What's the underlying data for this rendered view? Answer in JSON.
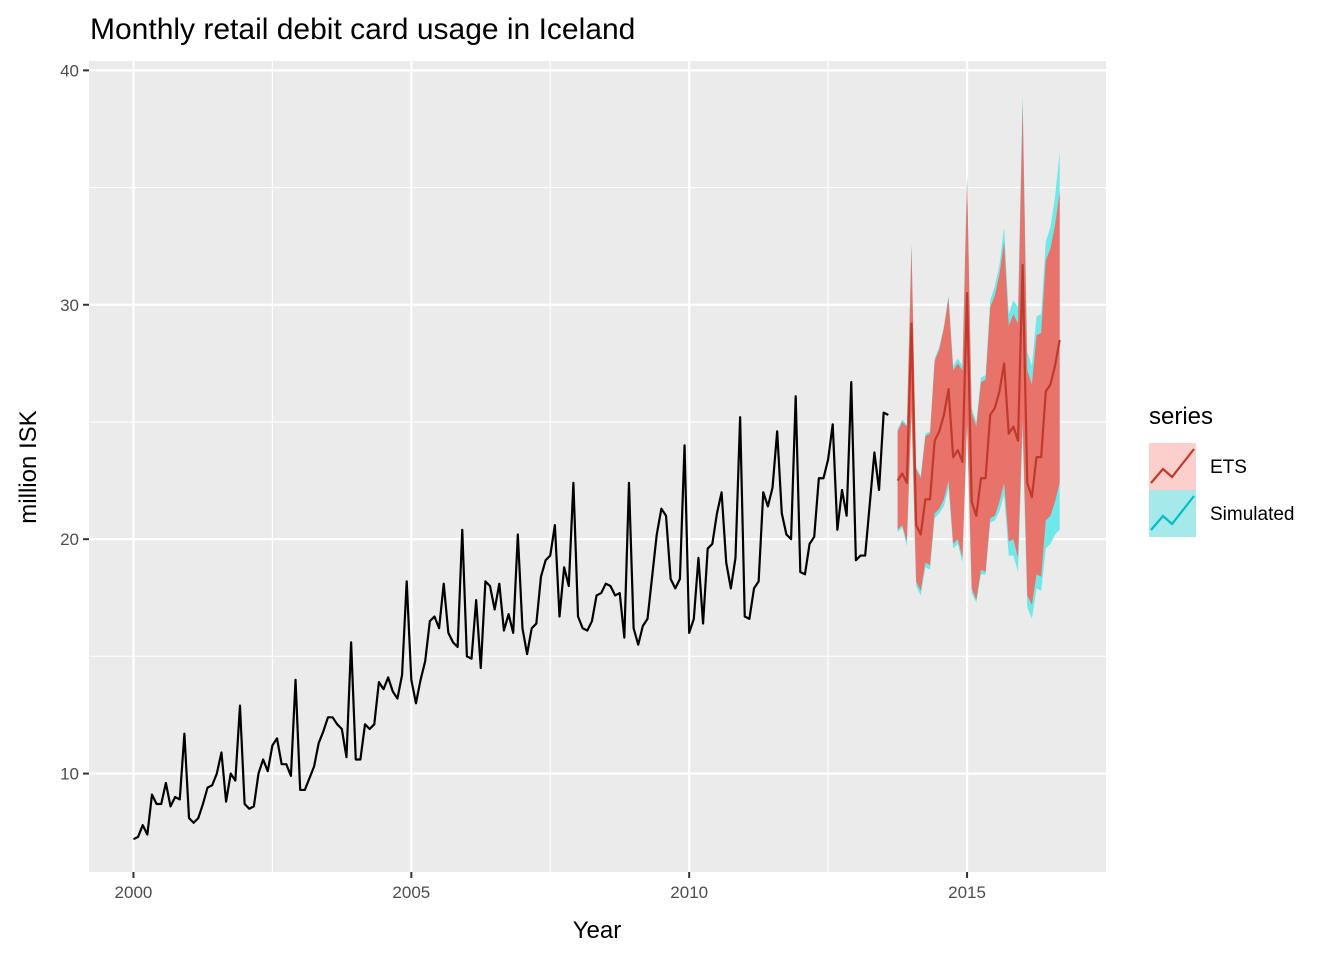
{
  "chart_data": {
    "type": "line",
    "title": "Monthly retail debit card usage in Iceland",
    "xlabel": "Year",
    "ylabel": "million ISK",
    "xlim": [
      1999.2,
      2017.5
    ],
    "ylim": [
      5.8,
      40.4
    ],
    "x_ticks": [
      2000,
      2005,
      2010,
      2015
    ],
    "x_tick_labels": [
      "2000",
      "2005",
      "2010",
      "2015"
    ],
    "y_ticks": [
      10,
      20,
      30,
      40
    ],
    "y_tick_labels": [
      "10",
      "20",
      "30",
      "40"
    ],
    "grid": true,
    "legend": {
      "title": "series",
      "position": "right",
      "entries": [
        {
          "label": "ETS",
          "line_color": "#c0392b",
          "fill_color": "#f8766d"
        },
        {
          "label": "Simulated",
          "line_color": "#00bfc4",
          "fill_color": "#00bfc4"
        }
      ]
    },
    "colors": {
      "panel": "#ebebeb",
      "grid": "#ffffff",
      "history_line": "#000000",
      "ets_line": "#c0392b",
      "ets_band": "#e8736b",
      "sim_band": "#6ee8e8"
    },
    "history": {
      "start": 2000.0,
      "step": 0.08333,
      "values": [
        7.2,
        7.3,
        7.8,
        7.4,
        9.1,
        8.7,
        8.7,
        9.6,
        8.6,
        9.0,
        8.9,
        11.7,
        8.1,
        7.9,
        8.1,
        8.7,
        9.4,
        9.5,
        10.0,
        10.9,
        8.8,
        10.0,
        9.7,
        12.9,
        8.7,
        8.5,
        8.6,
        10.0,
        10.6,
        10.1,
        11.2,
        11.5,
        10.4,
        10.4,
        9.9,
        14.0,
        9.3,
        9.3,
        9.8,
        10.3,
        11.3,
        11.8,
        12.4,
        12.4,
        12.1,
        11.9,
        10.7,
        15.6,
        10.6,
        10.6,
        12.1,
        11.9,
        12.1,
        13.9,
        13.6,
        14.1,
        13.5,
        13.2,
        14.2,
        18.2,
        14.0,
        13.0,
        14.0,
        14.8,
        16.5,
        16.7,
        16.2,
        18.1,
        16.0,
        15.6,
        15.4,
        20.4,
        15.0,
        14.9,
        17.4,
        14.5,
        18.2,
        18.0,
        17.0,
        18.1,
        16.1,
        16.8,
        16.0,
        20.2,
        16.2,
        15.1,
        16.2,
        16.4,
        18.4,
        19.1,
        19.3,
        20.6,
        16.7,
        18.8,
        18.0,
        22.4,
        16.7,
        16.2,
        16.1,
        16.5,
        17.6,
        17.7,
        18.1,
        18.0,
        17.6,
        17.7,
        15.8,
        22.4,
        16.2,
        15.5,
        16.3,
        16.6,
        18.4,
        20.2,
        21.3,
        21.0,
        18.3,
        17.9,
        18.3,
        24.0,
        16.0,
        16.6,
        19.2,
        16.4,
        19.6,
        19.8,
        21.1,
        22.0,
        19.0,
        17.9,
        19.2,
        25.2,
        16.7,
        16.6,
        17.9,
        18.2,
        22.0,
        21.4,
        22.2,
        24.6,
        21.1,
        20.2,
        20.0,
        26.1,
        18.6,
        18.5,
        19.8,
        20.1,
        22.6,
        22.6,
        23.4,
        24.9,
        20.4,
        22.1,
        21.0,
        26.7,
        19.1,
        19.3,
        19.3,
        21.5,
        23.7,
        22.1,
        25.4,
        25.3
      ]
    },
    "forecast": {
      "start": 2013.75,
      "step": 0.08333,
      "ets_mean": [
        22.5,
        22.8,
        22.4,
        29.2,
        20.6,
        20.2,
        21.7,
        21.7,
        24.2,
        24.6,
        25.3,
        26.4,
        23.5,
        23.8,
        23.3,
        30.5,
        21.6,
        21.0,
        22.6,
        22.6,
        25.3,
        25.6,
        26.3,
        27.5,
        24.5,
        24.8,
        24.2,
        31.7,
        22.4,
        21.8,
        23.5,
        23.5,
        26.3,
        26.6,
        27.4,
        28.5
      ],
      "ets_lower": [
        20.4,
        20.6,
        19.9,
        25.5,
        18.2,
        17.8,
        19.0,
        18.9,
        21.1,
        21.3,
        21.7,
        22.5,
        19.8,
        20.0,
        19.2,
        25.0,
        17.9,
        17.4,
        18.7,
        18.6,
        20.9,
        21.0,
        21.6,
        22.4,
        19.9,
        20.0,
        19.2,
        25.1,
        17.6,
        17.2,
        18.5,
        18.4,
        20.8,
        21.0,
        21.6,
        22.4
      ],
      "ets_upper": [
        24.6,
        25.0,
        24.8,
        32.5,
        23.0,
        22.6,
        24.4,
        24.5,
        27.6,
        28.1,
        29.0,
        30.3,
        27.2,
        27.5,
        27.2,
        35.4,
        25.4,
        24.8,
        26.7,
        26.8,
        29.9,
        30.4,
        31.3,
        32.7,
        29.1,
        29.6,
        29.2,
        38.6,
        27.2,
        26.6,
        28.7,
        28.8,
        31.9,
        32.4,
        33.4,
        34.8
      ],
      "sim_lower": [
        20.3,
        20.5,
        19.7,
        25.4,
        18.0,
        17.6,
        18.8,
        18.7,
        20.9,
        21.1,
        21.4,
        22.2,
        19.6,
        19.8,
        19.0,
        24.8,
        17.7,
        17.3,
        18.5,
        18.5,
        20.7,
        20.8,
        21.2,
        21.9,
        19.3,
        19.3,
        18.6,
        24.5,
        17.1,
        16.6,
        17.9,
        17.8,
        19.6,
        19.8,
        20.2,
        20.4
      ],
      "sim_upper": [
        24.7,
        25.1,
        24.9,
        32.6,
        23.1,
        22.7,
        24.5,
        24.6,
        27.7,
        28.2,
        29.1,
        30.4,
        27.4,
        27.7,
        27.4,
        35.6,
        25.6,
        25.0,
        26.9,
        27.0,
        30.2,
        30.8,
        31.7,
        33.3,
        29.6,
        30.2,
        29.9,
        39.0,
        28.0,
        27.4,
        29.5,
        29.6,
        32.7,
        33.3,
        34.6,
        36.5
      ]
    }
  }
}
